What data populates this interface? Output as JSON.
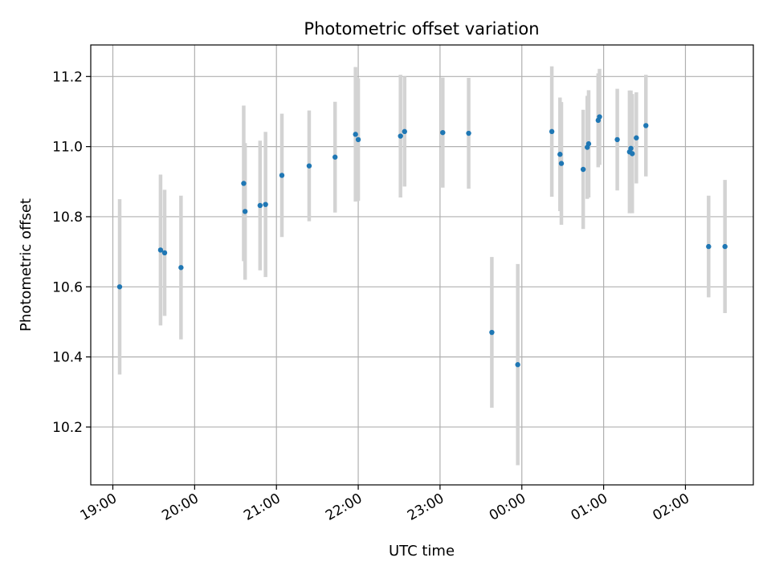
{
  "chart_data": {
    "type": "scatter",
    "title": "Photometric offset variation",
    "xlabel": "UTC time",
    "ylabel": "Photometric offset",
    "x_ticks": [
      "19:00",
      "20:00",
      "21:00",
      "22:00",
      "23:00",
      "00:00",
      "01:00",
      "02:00"
    ],
    "x_tick_hours": [
      19,
      20,
      21,
      22,
      23,
      24,
      25,
      26
    ],
    "xlim_hours": [
      18.73,
      26.83
    ],
    "y_ticks": [
      10.2,
      10.4,
      10.6,
      10.8,
      11.0,
      11.2
    ],
    "ylim": [
      10.035,
      11.29
    ],
    "grid": true,
    "colors": {
      "point": "#1f77b4",
      "errorbar": "#d3d3d3",
      "grid": "#b0b0b0"
    },
    "series": [
      {
        "points": [
          {
            "x": "19:05",
            "y": 10.6,
            "err": 0.25
          },
          {
            "x": "19:35",
            "y": 10.705,
            "err": 0.215
          },
          {
            "x": "19:38",
            "y": 10.697,
            "err": 0.18
          },
          {
            "x": "19:50",
            "y": 10.655,
            "err": 0.205
          },
          {
            "x": "20:36",
            "y": 10.895,
            "err": 0.222
          },
          {
            "x": "20:37",
            "y": 10.815,
            "err": 0.195
          },
          {
            "x": "20:48",
            "y": 10.832,
            "err": 0.185
          },
          {
            "x": "20:52",
            "y": 10.835,
            "err": 0.207
          },
          {
            "x": "21:04",
            "y": 10.918,
            "err": 0.176
          },
          {
            "x": "21:24",
            "y": 10.945,
            "err": 0.158
          },
          {
            "x": "21:43",
            "y": 10.97,
            "err": 0.158
          },
          {
            "x": "21:58",
            "y": 11.035,
            "err": 0.192
          },
          {
            "x": "22:00",
            "y": 11.02,
            "err": 0.175
          },
          {
            "x": "22:31",
            "y": 11.03,
            "err": 0.175
          },
          {
            "x": "22:34",
            "y": 11.043,
            "err": 0.157
          },
          {
            "x": "23:02",
            "y": 11.04,
            "err": 0.157
          },
          {
            "x": "23:21",
            "y": 11.038,
            "err": 0.158
          },
          {
            "x": "23:38",
            "y": 10.47,
            "err": 0.215
          },
          {
            "x": "23:57",
            "y": 10.378,
            "err": 0.287
          },
          {
            "x": "00:22",
            "y": 11.043,
            "err": 0.186
          },
          {
            "x": "00:28",
            "y": 10.978,
            "err": 0.162
          },
          {
            "x": "00:29",
            "y": 10.952,
            "err": 0.175
          },
          {
            "x": "00:45",
            "y": 10.935,
            "err": 0.17
          },
          {
            "x": "00:48",
            "y": 10.998,
            "err": 0.147
          },
          {
            "x": "00:49",
            "y": 11.008,
            "err": 0.153
          },
          {
            "x": "00:56",
            "y": 11.075,
            "err": 0.134
          },
          {
            "x": "00:57",
            "y": 11.085,
            "err": 0.137
          },
          {
            "x": "01:10",
            "y": 11.02,
            "err": 0.145
          },
          {
            "x": "01:19",
            "y": 10.985,
            "err": 0.175
          },
          {
            "x": "01:20",
            "y": 10.995,
            "err": 0.165
          },
          {
            "x": "01:21",
            "y": 10.98,
            "err": 0.17
          },
          {
            "x": "01:24",
            "y": 11.025,
            "err": 0.13
          },
          {
            "x": "01:31",
            "y": 11.06,
            "err": 0.145
          },
          {
            "x": "02:17",
            "y": 10.715,
            "err": 0.145
          },
          {
            "x": "02:29",
            "y": 10.715,
            "err": 0.19
          }
        ]
      }
    ]
  }
}
